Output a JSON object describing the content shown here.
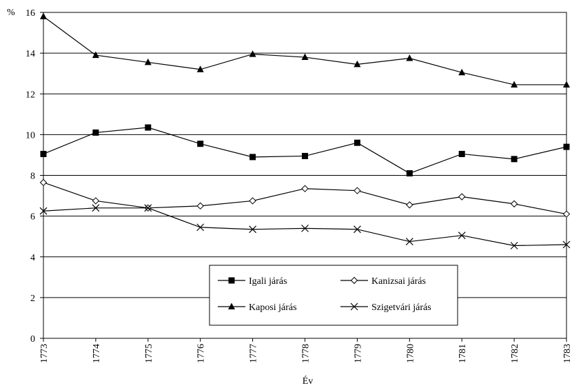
{
  "chart_data": {
    "type": "line",
    "ylabel_unit": "%",
    "xlabel": "Év",
    "ylim": [
      0,
      16
    ],
    "yticks": [
      0,
      2,
      4,
      6,
      8,
      10,
      12,
      14,
      16
    ],
    "grid": true,
    "legend_position": "lower-center",
    "x": [
      "1773",
      "1774",
      "1775",
      "1776",
      "1777",
      "1778",
      "1779",
      "1780",
      "1781",
      "1782",
      "1783"
    ],
    "series": [
      {
        "name": "Igali járás",
        "marker": "square",
        "values": [
          9.05,
          10.1,
          10.35,
          9.55,
          8.9,
          8.95,
          9.6,
          8.1,
          9.05,
          8.8,
          9.4
        ]
      },
      {
        "name": "Kanizsai járás",
        "marker": "diamond-open",
        "values": [
          7.65,
          6.75,
          6.4,
          6.5,
          6.75,
          7.35,
          7.25,
          6.55,
          6.95,
          6.6,
          6.1
        ]
      },
      {
        "name": "Kaposi járás",
        "marker": "triangle",
        "values": [
          15.8,
          13.9,
          13.55,
          13.2,
          13.95,
          13.8,
          13.45,
          13.75,
          13.05,
          12.45,
          12.45
        ]
      },
      {
        "name": "Szigetvári járás",
        "marker": "x",
        "values": [
          6.25,
          6.4,
          6.4,
          5.45,
          5.35,
          5.4,
          5.35,
          4.75,
          5.05,
          4.55,
          4.6
        ]
      }
    ]
  }
}
